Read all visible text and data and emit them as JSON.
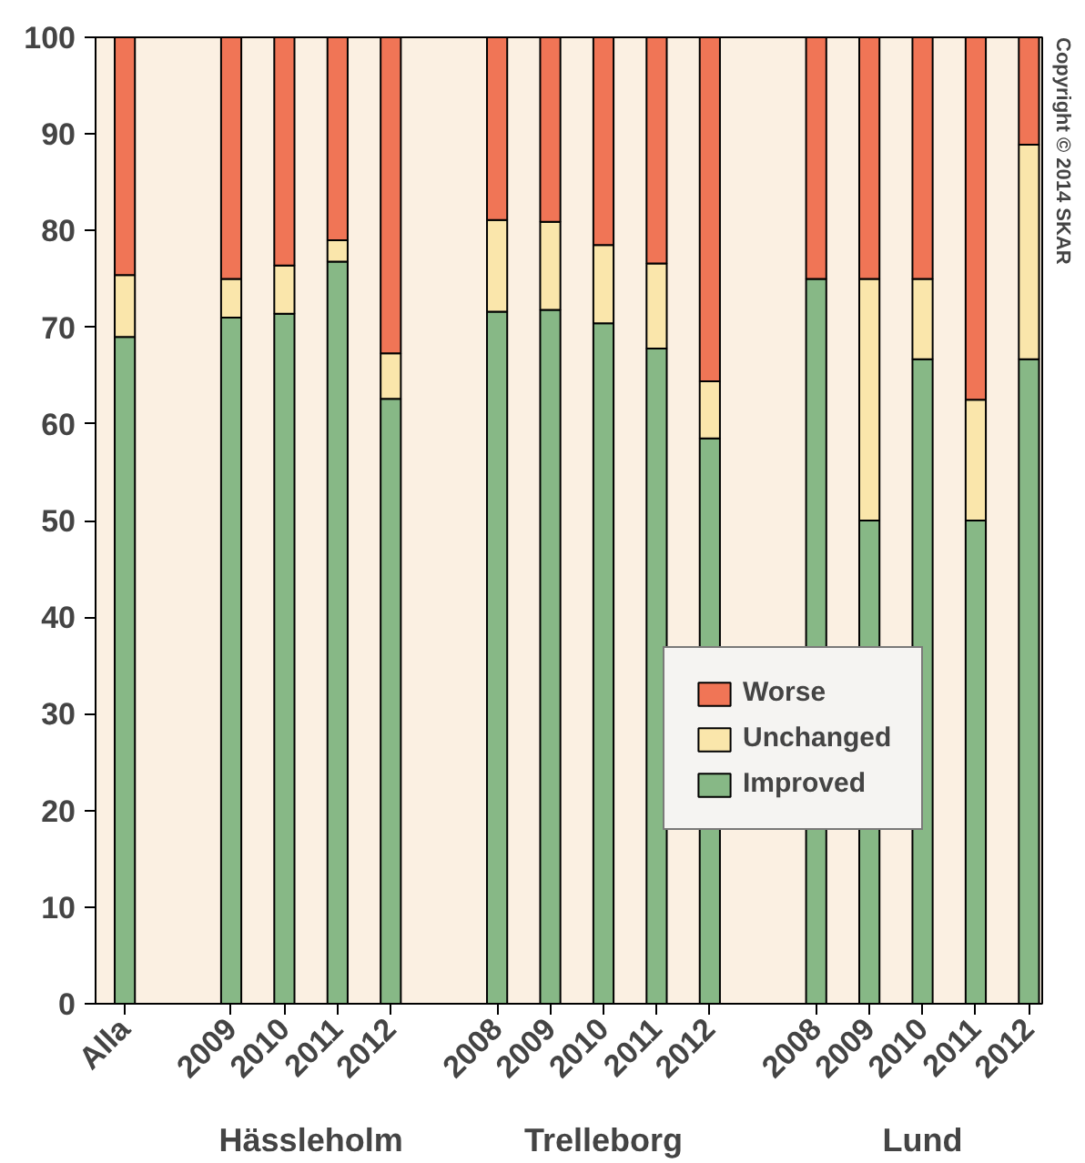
{
  "chart_data": {
    "type": "bar",
    "stacked": true,
    "categories": [
      "Alla",
      null,
      "2009",
      "2010",
      "2011",
      "2012",
      null,
      "2008",
      "2009",
      "2010",
      "2011",
      "2012",
      null,
      "2008",
      "2009",
      "2010",
      "2011",
      "2012"
    ],
    "series": [
      {
        "name": "Improved",
        "color": "#87b886",
        "values": [
          69,
          null,
          71,
          71.4,
          76.8,
          62.6,
          null,
          71.6,
          71.8,
          70.4,
          67.8,
          58.5,
          null,
          75,
          50,
          66.7,
          50,
          66.7
        ]
      },
      {
        "name": "Unchanged",
        "color": "#fae6ab",
        "values": [
          6.4,
          null,
          4,
          5,
          2.2,
          4.7,
          null,
          9.5,
          9.1,
          8.1,
          8.8,
          5.9,
          null,
          null,
          25,
          8.3,
          12.5,
          22.2
        ]
      },
      {
        "name": "Worse",
        "color": "#f07556",
        "values": [
          24.6,
          null,
          25,
          23.6,
          21,
          32.7,
          null,
          18.9,
          19.1,
          21.5,
          23.4,
          35.6,
          null,
          25,
          25,
          25,
          37.5,
          11.1
        ]
      }
    ],
    "ylim": [
      0,
      100
    ],
    "yticks": [
      0,
      10,
      20,
      30,
      40,
      50,
      60,
      70,
      80,
      90,
      100
    ],
    "grid": false,
    "legend": "right",
    "annotations": [
      "Hässleholm",
      "Trelleborg",
      "Lund",
      "Copyright © 2014 SKAR"
    ]
  }
}
